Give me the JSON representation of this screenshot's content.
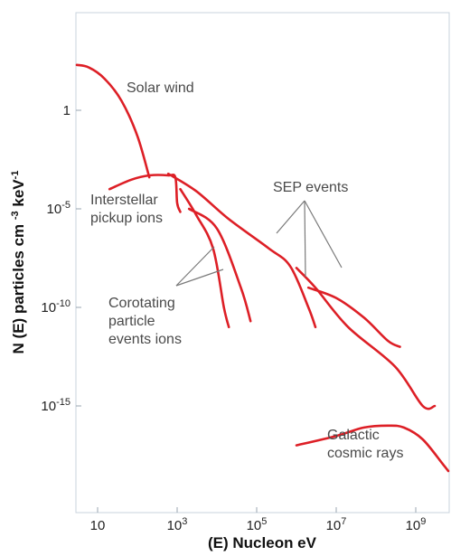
{
  "chart_data": {
    "type": "line",
    "x_scale": "log",
    "y_scale": "log",
    "xlim": [
      1,
      100000000000
    ],
    "ylim": [
      1e-20,
      1000
    ],
    "xlabel": "(E) Nucleon eV",
    "ylabel": "N (E) particles cm -3 keV-1",
    "grid": false,
    "x_ticks": [
      {
        "value": 10,
        "label": "10"
      },
      {
        "value": 1000,
        "label": "10",
        "exp": "3"
      },
      {
        "value": 100000,
        "label": "10",
        "exp": "5"
      },
      {
        "value": 10000000,
        "label": "10",
        "exp": "7"
      },
      {
        "value": 1000000000,
        "label": "10",
        "exp": "9"
      }
    ],
    "y_ticks": [
      {
        "value": 1,
        "label": "1"
      },
      {
        "value": 1e-05,
        "label": "10",
        "exp": "-5"
      },
      {
        "value": 1e-10,
        "label": "10",
        "exp": "-10"
      },
      {
        "value": 1e-15,
        "label": "10",
        "exp": "-15"
      }
    ],
    "color": "#dd1f26",
    "series": [
      {
        "points": [
          [
            3,
            200
          ],
          [
            6,
            150
          ],
          [
            15,
            40
          ],
          [
            40,
            3
          ],
          [
            100,
            0.05
          ],
          [
            200,
            0.0004
          ]
        ]
      },
      {
        "points": [
          [
            20,
            0.0001
          ],
          [
            70,
            0.0003
          ],
          [
            200,
            0.0005
          ],
          [
            600,
            0.0005
          ],
          [
            900,
            0.0004
          ],
          [
            1000,
            2e-05
          ],
          [
            1200,
            7e-06
          ]
        ]
      },
      {
        "points": [
          [
            1200,
            0.0001
          ],
          [
            3000,
            5e-06
          ],
          [
            8000,
            1e-07
          ],
          [
            15000,
            1e-10
          ],
          [
            20000,
            1e-11
          ]
        ]
      },
      {
        "points": [
          [
            2000,
            1e-05
          ],
          [
            10000,
            1e-06
          ],
          [
            40000,
            1e-09
          ],
          [
            70000,
            2e-11
          ]
        ]
      },
      {
        "points": [
          [
            600,
            0.0006
          ],
          [
            3000,
            8e-05
          ],
          [
            20000,
            3e-06
          ],
          [
            200000,
            1e-07
          ],
          [
            700000,
            1.2e-08
          ],
          [
            2000000,
            1e-10
          ],
          [
            3000000,
            1e-11
          ]
        ]
      },
      {
        "points": [
          [
            1000000,
            1e-08
          ],
          [
            3000000,
            1e-09
          ],
          [
            20000000,
            1e-11
          ],
          [
            300000000,
            1e-13
          ],
          [
            1500000000,
            1e-15
          ],
          [
            3000000000,
            1e-15
          ]
        ]
      },
      {
        "points": [
          [
            2000000,
            1e-09
          ],
          [
            10000000,
            3e-10
          ],
          [
            50000000,
            3e-11
          ],
          [
            200000000,
            2e-12
          ],
          [
            400000000,
            1e-12
          ]
        ]
      },
      {
        "points": [
          [
            1000000,
            1e-17
          ],
          [
            10000000,
            3e-17
          ],
          [
            50000000,
            8e-17
          ],
          [
            200000000,
            1e-16
          ],
          [
            500000000,
            8e-17
          ],
          [
            1500000000,
            2e-17
          ],
          [
            5000000000,
            1e-18
          ],
          [
            10000000000,
            5e-19
          ]
        ]
      }
    ],
    "annotations": [
      {
        "key": "solar_wind",
        "lines": [
          "Solar wind"
        ]
      },
      {
        "key": "interstellar",
        "lines": [
          "Interstellar",
          "pickup ions"
        ]
      },
      {
        "key": "sep",
        "lines": [
          "SEP events"
        ]
      },
      {
        "key": "corotating",
        "lines": [
          "Corotating",
          "particle",
          "events ions"
        ]
      },
      {
        "key": "galactic",
        "lines": [
          "Galactic",
          "cosmic rays"
        ]
      }
    ]
  }
}
